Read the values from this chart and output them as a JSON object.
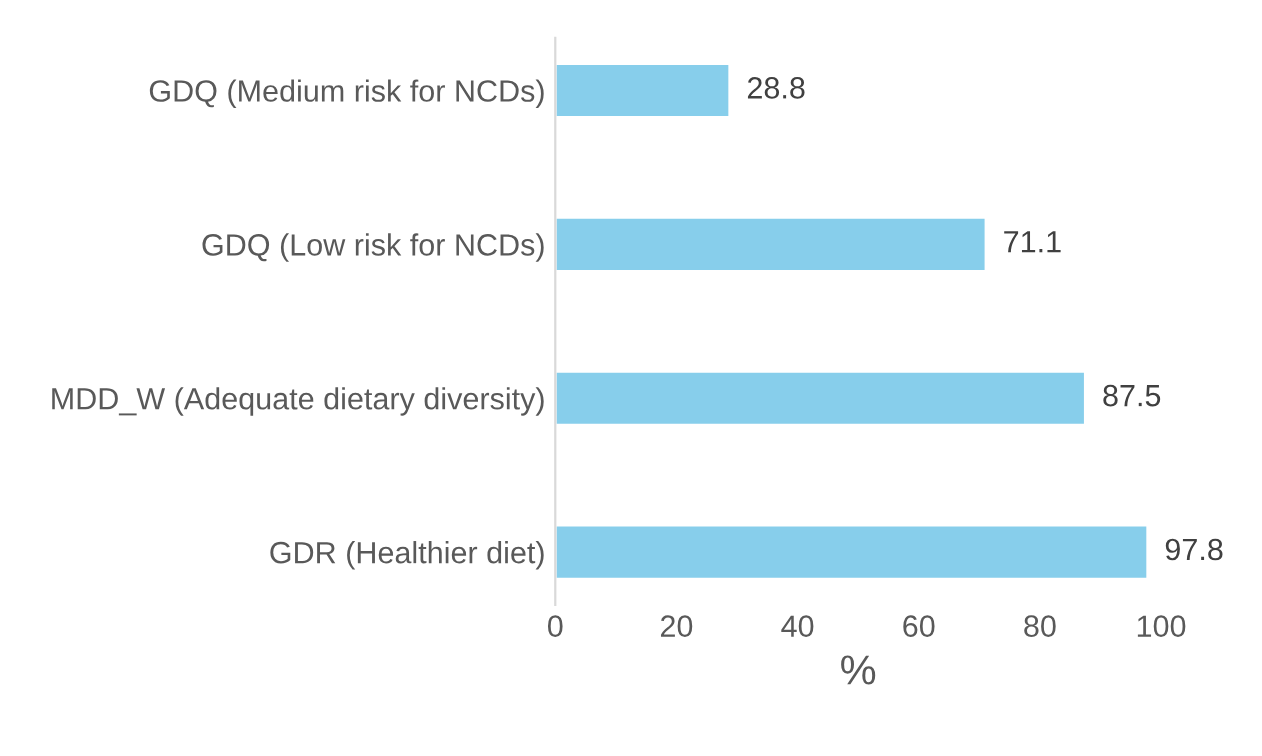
{
  "chart_data": {
    "type": "bar",
    "orientation": "horizontal",
    "xlabel": "%",
    "categories": [
      "GDQ (Medium risk for NCDs)",
      "GDQ (Low risk for NCDs)",
      "MDD_W (Adequate dietary diversity)",
      "GDR (Healthier diet)"
    ],
    "values": [
      28.8,
      71.1,
      87.5,
      97.8
    ],
    "color": "#87ceeb",
    "data_labels": true,
    "xlim": [
      0,
      100
    ],
    "xticks": [
      0,
      20,
      40,
      60,
      80,
      100
    ],
    "grid": false,
    "legend": false
  }
}
